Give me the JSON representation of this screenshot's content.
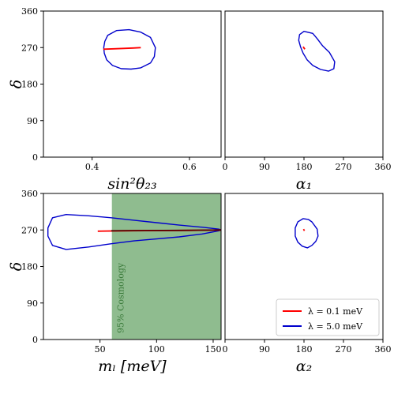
{
  "chart_data": {
    "type": "line",
    "legend": {
      "placement": "lower-right",
      "entries": [
        {
          "label": "λ = 0.1 meV",
          "color": "#ff0000"
        },
        {
          "label": "λ = 5.0 meV",
          "color": "#0000cc"
        }
      ]
    },
    "colors": {
      "red": "#ff0000",
      "blue": "#0000cc",
      "dark": "#5a0000",
      "band": "#8fbc8f",
      "band_text": "#3a7a3a"
    },
    "panels": [
      {
        "id": "top-left",
        "xlabel": "sin²θ₂₃",
        "ylabel": "δ",
        "xlim": [
          0.3,
          0.665
        ],
        "ylim": [
          0,
          360
        ],
        "xticks": [
          0.4,
          0.6
        ],
        "xtick_labels": [
          "0.4",
          "0.6"
        ],
        "yticks": [
          0,
          90,
          180,
          270,
          360
        ],
        "ytick_labels": [
          "0",
          "90",
          "180",
          "270",
          "360"
        ],
        "series": [
          {
            "color": "blue",
            "x": [
              0.45,
              0.476,
              0.5,
              0.52,
              0.53,
              0.528,
              0.52,
              0.5,
              0.48,
              0.46,
              0.442,
              0.43,
              0.425,
              0.424,
              0.426,
              0.432,
              0.45
            ],
            "y": [
              312,
              314,
              308,
              295,
              270,
              248,
              232,
              220,
              217,
              218,
              226,
              240,
              256,
              270,
              285,
              300,
              312
            ]
          },
          {
            "color": "red",
            "x": [
              0.423,
              0.445,
              0.465,
              0.485,
              0.5
            ],
            "y": [
              266,
              267,
              268,
              269,
              270
            ]
          }
        ]
      },
      {
        "id": "top-right",
        "xlabel": "α₁",
        "ylabel": "",
        "xlim": [
          0,
          360
        ],
        "ylim": [
          0,
          360
        ],
        "xticks": [
          0,
          90,
          180,
          270,
          360
        ],
        "xtick_labels": [
          "0",
          "90",
          "180",
          "270",
          "360"
        ],
        "yticks": [],
        "ytick_labels": [],
        "series": [
          {
            "color": "blue",
            "x": [
              180,
              200,
              210,
              222,
              238,
              250,
              248,
              236,
              218,
              200,
              187,
              178,
              172,
              168,
              170,
              180
            ],
            "y": [
              310,
              305,
              292,
              275,
              258,
              235,
              218,
              212,
              216,
              226,
              240,
              256,
              272,
              288,
              302,
              310
            ]
          },
          {
            "color": "red",
            "x": [
              178,
              182
            ],
            "y": [
              272,
              266
            ]
          }
        ]
      },
      {
        "id": "bottom-left",
        "xlabel": "mₗ [meV]",
        "ylabel": "δ",
        "xlim": [
          0,
          157
        ],
        "ylim": [
          0,
          360
        ],
        "xticks": [
          50,
          100,
          150
        ],
        "xtick_labels": [
          "50",
          "100",
          "150"
        ],
        "yticks": [
          0,
          90,
          180,
          270,
          360
        ],
        "ytick_labels": [
          "0",
          "90",
          "180",
          "270",
          "360"
        ],
        "band": {
          "x0": 60.5,
          "x1": 157,
          "label": "95% Cosmology"
        },
        "series": [
          {
            "color": "blue",
            "x": [
              4,
              8,
              20,
              40,
              60,
              80,
              100,
              120,
              140,
              155,
              157,
              155,
              140,
              120,
              100,
              80,
              60,
              40,
              20,
              8,
              4
            ],
            "y": [
              275,
              300,
              308,
              305,
              300,
              294,
              288,
              282,
              277,
              272,
              270,
              268,
              260,
              253,
              248,
              243,
              236,
              228,
              222,
              232,
              255
            ]
          },
          {
            "color": "red",
            "x": [
              48,
              70,
              100,
              130,
              157
            ],
            "y": [
              267,
              268,
              268.5,
              269,
              270
            ]
          },
          {
            "color": "dark",
            "x": [
              60,
              90,
              120,
              157
            ],
            "y": [
              268,
              268.5,
              269,
              270
            ]
          }
        ]
      },
      {
        "id": "bottom-right",
        "xlabel": "α₂",
        "ylabel": "",
        "xlim": [
          0,
          360
        ],
        "ylim": [
          0,
          360
        ],
        "xticks": [
          0,
          90,
          180,
          270,
          360
        ],
        "xtick_labels": [
          "0",
          "90",
          "180",
          "270",
          "360"
        ],
        "yticks": [],
        "ytick_labels": [],
        "series": [
          {
            "color": "blue",
            "x": [
              178,
              190,
              198,
              210,
              212,
              207,
              198,
              188,
              176,
              166,
              160,
              160,
              166,
              178
            ],
            "y": [
              298,
              296,
              290,
              272,
              255,
              242,
              232,
              226,
              230,
              240,
              255,
              275,
              290,
              298
            ]
          },
          {
            "color": "red",
            "x": [
              179,
              181
            ],
            "y": [
              272,
              268
            ]
          }
        ]
      }
    ]
  }
}
